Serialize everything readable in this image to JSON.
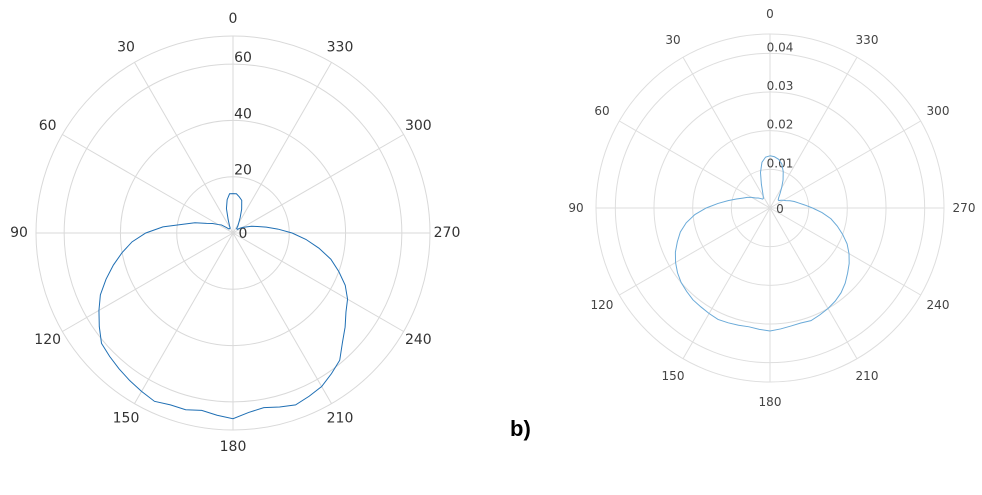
{
  "panels": {
    "b_label": "b)"
  },
  "chart_data": [
    {
      "type": "polar-line",
      "theta_direction": "clockwise-reversed",
      "theta_zero": "top",
      "angle_ticks": [
        "0",
        "30",
        "60",
        "90",
        "120",
        "150",
        "180",
        "210",
        "240",
        "270",
        "300",
        "330"
      ],
      "angle_tick_values": [
        0,
        30,
        60,
        90,
        120,
        150,
        180,
        210,
        240,
        270,
        300,
        330
      ],
      "radial_ticks": [
        "0",
        "20",
        "40",
        "60"
      ],
      "radial_tick_values": [
        0,
        20,
        40,
        60
      ],
      "rlim": [
        0,
        70
      ],
      "grid": true,
      "line_color": "#1f6fb4",
      "series": [
        {
          "theta": [
            0,
            5,
            10,
            15,
            20,
            25,
            30,
            35,
            40,
            45,
            50,
            55,
            60,
            65,
            70,
            75,
            80,
            85,
            90,
            95,
            100,
            105,
            110,
            115,
            120,
            125,
            130,
            135,
            140,
            145,
            150,
            155,
            160,
            165,
            170,
            175,
            180,
            185,
            190,
            195,
            200,
            205,
            210,
            215,
            220,
            225,
            230,
            235,
            240,
            245,
            250,
            255,
            260,
            265,
            270,
            275,
            280,
            285,
            290,
            295,
            300,
            305,
            310,
            315,
            320,
            325,
            330,
            335,
            340,
            345,
            350,
            355,
            360
          ],
          "r": [
            14,
            14,
            12,
            9,
            5,
            3,
            2,
            2,
            2,
            2,
            3,
            5,
            6,
            8,
            10,
            14,
            18,
            25,
            31,
            36,
            40,
            44,
            48,
            52,
            55,
            58,
            61,
            62,
            63,
            64,
            65,
            66,
            65,
            65,
            64,
            65,
            66,
            64,
            63,
            64,
            65,
            64,
            63,
            61,
            59,
            55,
            52,
            49,
            47,
            44,
            40,
            36,
            31,
            26,
            21,
            16,
            12,
            9,
            7,
            5,
            4,
            3,
            2,
            2,
            2,
            3,
            4,
            6,
            9,
            12,
            13,
            14,
            14
          ]
        }
      ]
    },
    {
      "type": "polar-line",
      "theta_direction": "clockwise-reversed",
      "theta_zero": "top",
      "angle_ticks": [
        "0",
        "30",
        "60",
        "90",
        "120",
        "150",
        "180",
        "210",
        "240",
        "270",
        "300",
        "330"
      ],
      "angle_tick_values": [
        0,
        30,
        60,
        90,
        120,
        150,
        180,
        210,
        240,
        270,
        300,
        330
      ],
      "radial_ticks": [
        "0",
        "0.01",
        "0.02",
        "0.03",
        "0.04"
      ],
      "radial_tick_values": [
        0,
        0.01,
        0.02,
        0.03,
        0.04
      ],
      "rlim": [
        0,
        0.045
      ],
      "grid": true,
      "line_color": "#6aaad8",
      "series": [
        {
          "theta": [
            0,
            5,
            10,
            15,
            20,
            25,
            30,
            35,
            40,
            45,
            50,
            55,
            60,
            65,
            70,
            75,
            80,
            85,
            90,
            95,
            100,
            105,
            110,
            115,
            120,
            125,
            130,
            135,
            140,
            145,
            150,
            155,
            160,
            165,
            170,
            175,
            180,
            185,
            190,
            195,
            200,
            205,
            210,
            215,
            220,
            225,
            230,
            235,
            240,
            245,
            250,
            255,
            260,
            265,
            270,
            275,
            280,
            285,
            290,
            295,
            300,
            305,
            310,
            315,
            320,
            325,
            330,
            335,
            340,
            345,
            350,
            355,
            360
          ],
          "r": [
            0.0135,
            0.0132,
            0.012,
            0.0095,
            0.0065,
            0.0045,
            0.0035,
            0.003,
            0.003,
            0.0035,
            0.004,
            0.0045,
            0.0055,
            0.0065,
            0.0075,
            0.009,
            0.011,
            0.0135,
            0.0165,
            0.0195,
            0.022,
            0.024,
            0.0255,
            0.027,
            0.0282,
            0.0292,
            0.03,
            0.0305,
            0.031,
            0.0312,
            0.0315,
            0.0318,
            0.0316,
            0.0314,
            0.0312,
            0.0315,
            0.0318,
            0.0314,
            0.031,
            0.0308,
            0.031,
            0.0305,
            0.03,
            0.0294,
            0.0286,
            0.0275,
            0.0262,
            0.025,
            0.0236,
            0.022,
            0.02,
            0.018,
            0.016,
            0.0135,
            0.011,
            0.009,
            0.0075,
            0.0065,
            0.0055,
            0.0045,
            0.004,
            0.0035,
            0.003,
            0.003,
            0.0035,
            0.0045,
            0.006,
            0.008,
            0.01,
            0.0118,
            0.0128,
            0.0133,
            0.0135
          ]
        }
      ]
    }
  ]
}
